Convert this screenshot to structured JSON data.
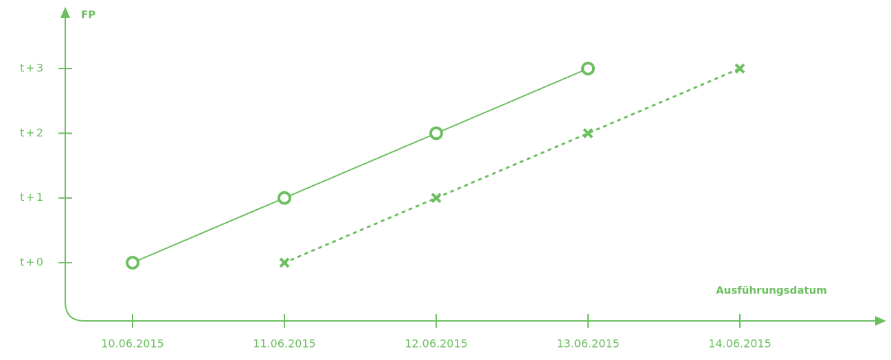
{
  "chart_data": {
    "type": "line",
    "y_label": "FP",
    "x_label": "Ausführungsdatum",
    "categories": [
      "10.06.2015",
      "11.06.2015",
      "12.06.2015",
      "13.06.2015",
      "14.06.2015"
    ],
    "series": [
      {
        "color": "#6cbf5f",
        "marker": "circle",
        "dotted": false,
        "values": [
          0,
          1,
          2,
          3,
          null
        ]
      },
      {
        "color": "#6cbf5f",
        "marker": "cross",
        "dotted": true,
        "values": [
          null,
          0,
          1,
          2,
          3
        ]
      }
    ],
    "ylim": [
      -0.9,
      3.9
    ],
    "yticks": [
      {
        "value": 0,
        "label": "t+0"
      },
      {
        "value": 1,
        "label": "t+1"
      },
      {
        "value": 2,
        "label": "t+2"
      },
      {
        "value": 3,
        "label": "t+3"
      }
    ],
    "axis_color": "#6cbf5f"
  }
}
